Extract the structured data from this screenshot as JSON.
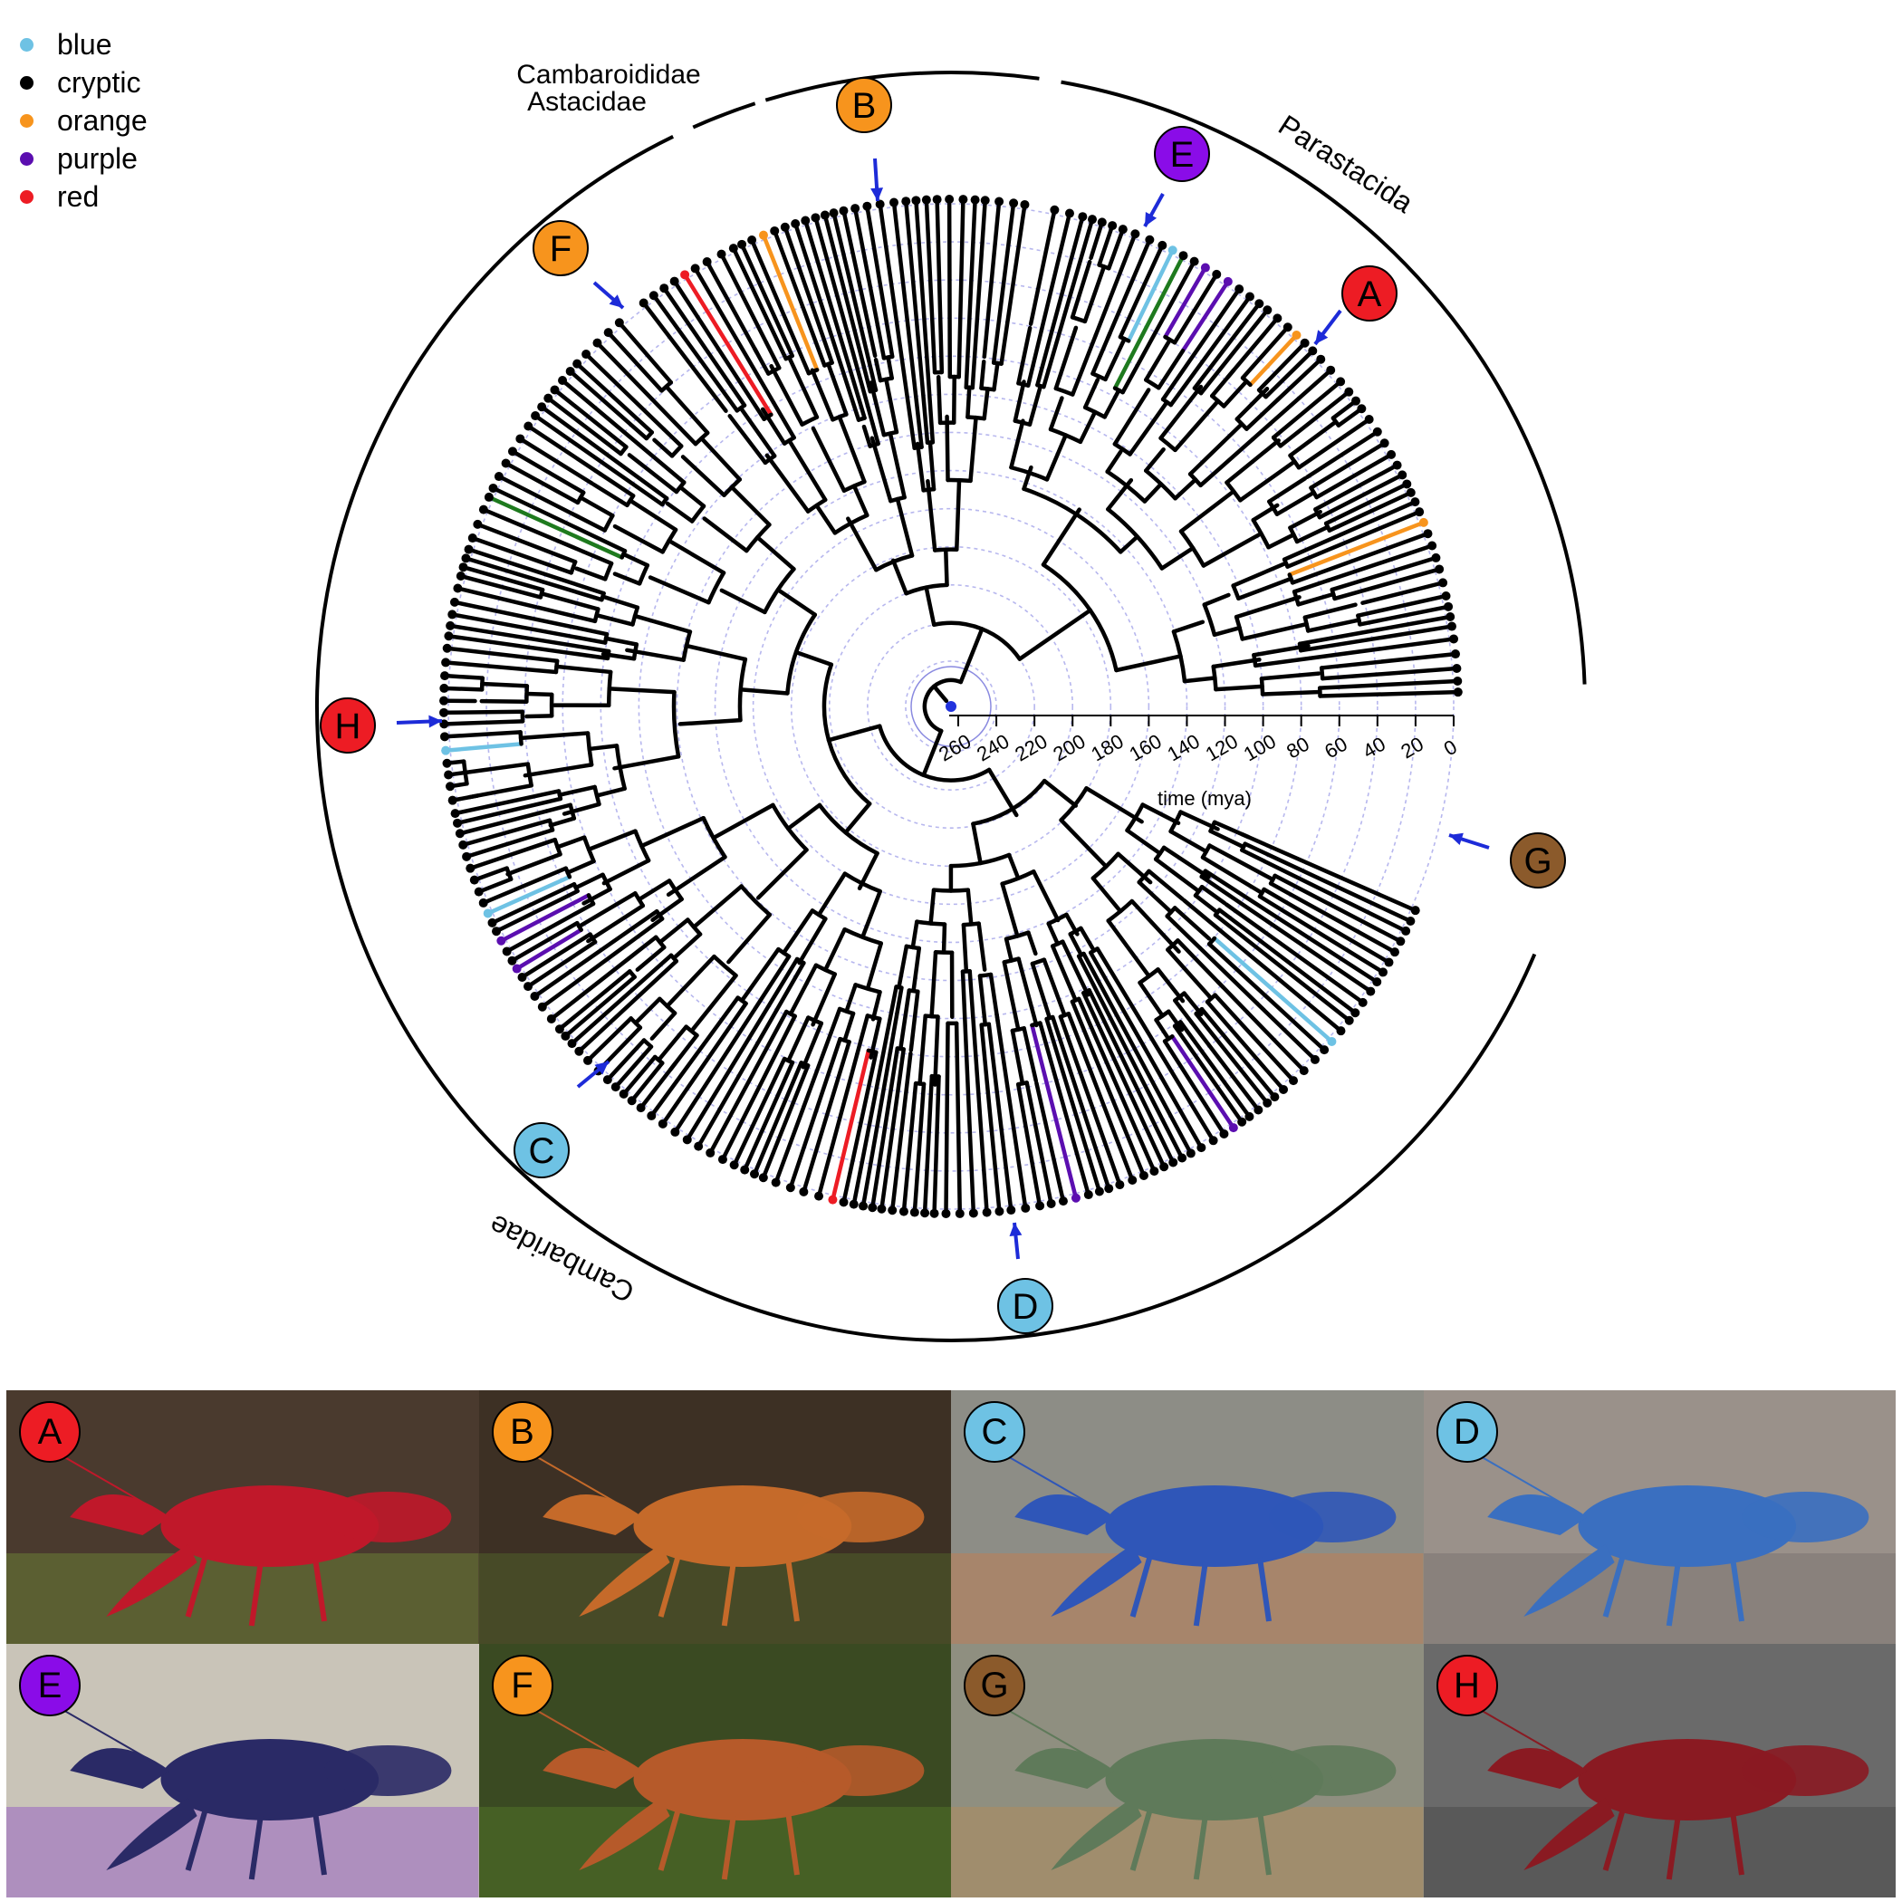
{
  "legend": [
    {
      "label": "blue",
      "color": "#6EC2E4"
    },
    {
      "label": "cryptic",
      "color": "#000000"
    },
    {
      "label": "orange",
      "color": "#F7941D"
    },
    {
      "label": "purple",
      "color": "#5B0EB0"
    },
    {
      "label": "red",
      "color": "#ED1C24"
    }
  ],
  "clades": {
    "cambaroididae": "Cambaroididae",
    "astacidae": "Astacidae",
    "parastacida": "Parastacida",
    "cambaridae": "Cambaridae"
  },
  "time_axis": {
    "ticks": [
      "260",
      "240",
      "220",
      "200",
      "180",
      "160",
      "140",
      "120",
      "100",
      "80",
      "60",
      "40",
      "20",
      "0"
    ],
    "label": "time (mya)"
  },
  "markers": [
    {
      "letter": "A",
      "color": "#ED1C24"
    },
    {
      "letter": "B",
      "color": "#F7941D"
    },
    {
      "letter": "C",
      "color": "#6EC2E4"
    },
    {
      "letter": "D",
      "color": "#6EC2E4"
    },
    {
      "letter": "E",
      "color": "#8A0CE8"
    },
    {
      "letter": "F",
      "color": "#F7941D"
    },
    {
      "letter": "G",
      "color": "#8B5A2B"
    },
    {
      "letter": "H",
      "color": "#ED1C24"
    }
  ],
  "photos": [
    {
      "letter": "A",
      "badge_color": "#ED1C24",
      "bg": "#4a3a2e",
      "body": "#c0182a",
      "accent": "#7aa53a"
    },
    {
      "letter": "B",
      "badge_color": "#F7941D",
      "bg": "#3d3024",
      "body": "#c56a2a",
      "accent": "#5d7a2e"
    },
    {
      "letter": "C",
      "badge_color": "#6EC2E4",
      "bg": "#8d8d86",
      "body": "#2f56b8",
      "accent": "#d9773a"
    },
    {
      "letter": "D",
      "badge_color": "#6EC2E4",
      "bg": "#9a918a",
      "body": "#3a6fc0",
      "accent": "#6a6560"
    },
    {
      "letter": "E",
      "badge_color": "#8A0CE8",
      "bg": "#c9c4b8",
      "body": "#2a2a66",
      "accent": "#7b2ec8"
    },
    {
      "letter": "F",
      "badge_color": "#F7941D",
      "bg": "#3a4a22",
      "body": "#b65a2a",
      "accent": "#5f8a2a"
    },
    {
      "letter": "G",
      "badge_color": "#8B5A2B",
      "bg": "#8f8f80",
      "body": "#5f7a5a",
      "accent": "#c08a4a"
    },
    {
      "letter": "H",
      "badge_color": "#ED1C24",
      "bg": "#6a6a6a",
      "body": "#8a1a22",
      "accent": "#3a3a3a"
    }
  ]
}
